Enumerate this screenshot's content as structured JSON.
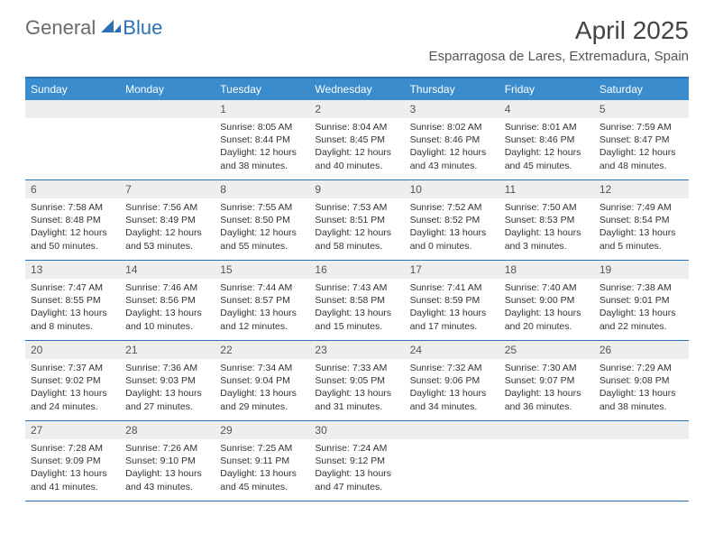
{
  "logo": {
    "general": "General",
    "blue": "Blue"
  },
  "title": "April 2025",
  "location": "Esparragosa de Lares, Extremadura, Spain",
  "colors": {
    "header_bg": "#3b8ccc",
    "border": "#2a72b5",
    "daynum_bg": "#eeeeee",
    "text": "#333333",
    "logo_gray": "#6a6a6a",
    "logo_blue": "#2a72b5"
  },
  "dayHeaders": [
    "Sunday",
    "Monday",
    "Tuesday",
    "Wednesday",
    "Thursday",
    "Friday",
    "Saturday"
  ],
  "weeks": [
    [
      null,
      null,
      {
        "n": "1",
        "sr": "Sunrise: 8:05 AM",
        "ss": "Sunset: 8:44 PM",
        "dl": "Daylight: 12 hours and 38 minutes."
      },
      {
        "n": "2",
        "sr": "Sunrise: 8:04 AM",
        "ss": "Sunset: 8:45 PM",
        "dl": "Daylight: 12 hours and 40 minutes."
      },
      {
        "n": "3",
        "sr": "Sunrise: 8:02 AM",
        "ss": "Sunset: 8:46 PM",
        "dl": "Daylight: 12 hours and 43 minutes."
      },
      {
        "n": "4",
        "sr": "Sunrise: 8:01 AM",
        "ss": "Sunset: 8:46 PM",
        "dl": "Daylight: 12 hours and 45 minutes."
      },
      {
        "n": "5",
        "sr": "Sunrise: 7:59 AM",
        "ss": "Sunset: 8:47 PM",
        "dl": "Daylight: 12 hours and 48 minutes."
      }
    ],
    [
      {
        "n": "6",
        "sr": "Sunrise: 7:58 AM",
        "ss": "Sunset: 8:48 PM",
        "dl": "Daylight: 12 hours and 50 minutes."
      },
      {
        "n": "7",
        "sr": "Sunrise: 7:56 AM",
        "ss": "Sunset: 8:49 PM",
        "dl": "Daylight: 12 hours and 53 minutes."
      },
      {
        "n": "8",
        "sr": "Sunrise: 7:55 AM",
        "ss": "Sunset: 8:50 PM",
        "dl": "Daylight: 12 hours and 55 minutes."
      },
      {
        "n": "9",
        "sr": "Sunrise: 7:53 AM",
        "ss": "Sunset: 8:51 PM",
        "dl": "Daylight: 12 hours and 58 minutes."
      },
      {
        "n": "10",
        "sr": "Sunrise: 7:52 AM",
        "ss": "Sunset: 8:52 PM",
        "dl": "Daylight: 13 hours and 0 minutes."
      },
      {
        "n": "11",
        "sr": "Sunrise: 7:50 AM",
        "ss": "Sunset: 8:53 PM",
        "dl": "Daylight: 13 hours and 3 minutes."
      },
      {
        "n": "12",
        "sr": "Sunrise: 7:49 AM",
        "ss": "Sunset: 8:54 PM",
        "dl": "Daylight: 13 hours and 5 minutes."
      }
    ],
    [
      {
        "n": "13",
        "sr": "Sunrise: 7:47 AM",
        "ss": "Sunset: 8:55 PM",
        "dl": "Daylight: 13 hours and 8 minutes."
      },
      {
        "n": "14",
        "sr": "Sunrise: 7:46 AM",
        "ss": "Sunset: 8:56 PM",
        "dl": "Daylight: 13 hours and 10 minutes."
      },
      {
        "n": "15",
        "sr": "Sunrise: 7:44 AM",
        "ss": "Sunset: 8:57 PM",
        "dl": "Daylight: 13 hours and 12 minutes."
      },
      {
        "n": "16",
        "sr": "Sunrise: 7:43 AM",
        "ss": "Sunset: 8:58 PM",
        "dl": "Daylight: 13 hours and 15 minutes."
      },
      {
        "n": "17",
        "sr": "Sunrise: 7:41 AM",
        "ss": "Sunset: 8:59 PM",
        "dl": "Daylight: 13 hours and 17 minutes."
      },
      {
        "n": "18",
        "sr": "Sunrise: 7:40 AM",
        "ss": "Sunset: 9:00 PM",
        "dl": "Daylight: 13 hours and 20 minutes."
      },
      {
        "n": "19",
        "sr": "Sunrise: 7:38 AM",
        "ss": "Sunset: 9:01 PM",
        "dl": "Daylight: 13 hours and 22 minutes."
      }
    ],
    [
      {
        "n": "20",
        "sr": "Sunrise: 7:37 AM",
        "ss": "Sunset: 9:02 PM",
        "dl": "Daylight: 13 hours and 24 minutes."
      },
      {
        "n": "21",
        "sr": "Sunrise: 7:36 AM",
        "ss": "Sunset: 9:03 PM",
        "dl": "Daylight: 13 hours and 27 minutes."
      },
      {
        "n": "22",
        "sr": "Sunrise: 7:34 AM",
        "ss": "Sunset: 9:04 PM",
        "dl": "Daylight: 13 hours and 29 minutes."
      },
      {
        "n": "23",
        "sr": "Sunrise: 7:33 AM",
        "ss": "Sunset: 9:05 PM",
        "dl": "Daylight: 13 hours and 31 minutes."
      },
      {
        "n": "24",
        "sr": "Sunrise: 7:32 AM",
        "ss": "Sunset: 9:06 PM",
        "dl": "Daylight: 13 hours and 34 minutes."
      },
      {
        "n": "25",
        "sr": "Sunrise: 7:30 AM",
        "ss": "Sunset: 9:07 PM",
        "dl": "Daylight: 13 hours and 36 minutes."
      },
      {
        "n": "26",
        "sr": "Sunrise: 7:29 AM",
        "ss": "Sunset: 9:08 PM",
        "dl": "Daylight: 13 hours and 38 minutes."
      }
    ],
    [
      {
        "n": "27",
        "sr": "Sunrise: 7:28 AM",
        "ss": "Sunset: 9:09 PM",
        "dl": "Daylight: 13 hours and 41 minutes."
      },
      {
        "n": "28",
        "sr": "Sunrise: 7:26 AM",
        "ss": "Sunset: 9:10 PM",
        "dl": "Daylight: 13 hours and 43 minutes."
      },
      {
        "n": "29",
        "sr": "Sunrise: 7:25 AM",
        "ss": "Sunset: 9:11 PM",
        "dl": "Daylight: 13 hours and 45 minutes."
      },
      {
        "n": "30",
        "sr": "Sunrise: 7:24 AM",
        "ss": "Sunset: 9:12 PM",
        "dl": "Daylight: 13 hours and 47 minutes."
      },
      null,
      null,
      null
    ]
  ]
}
